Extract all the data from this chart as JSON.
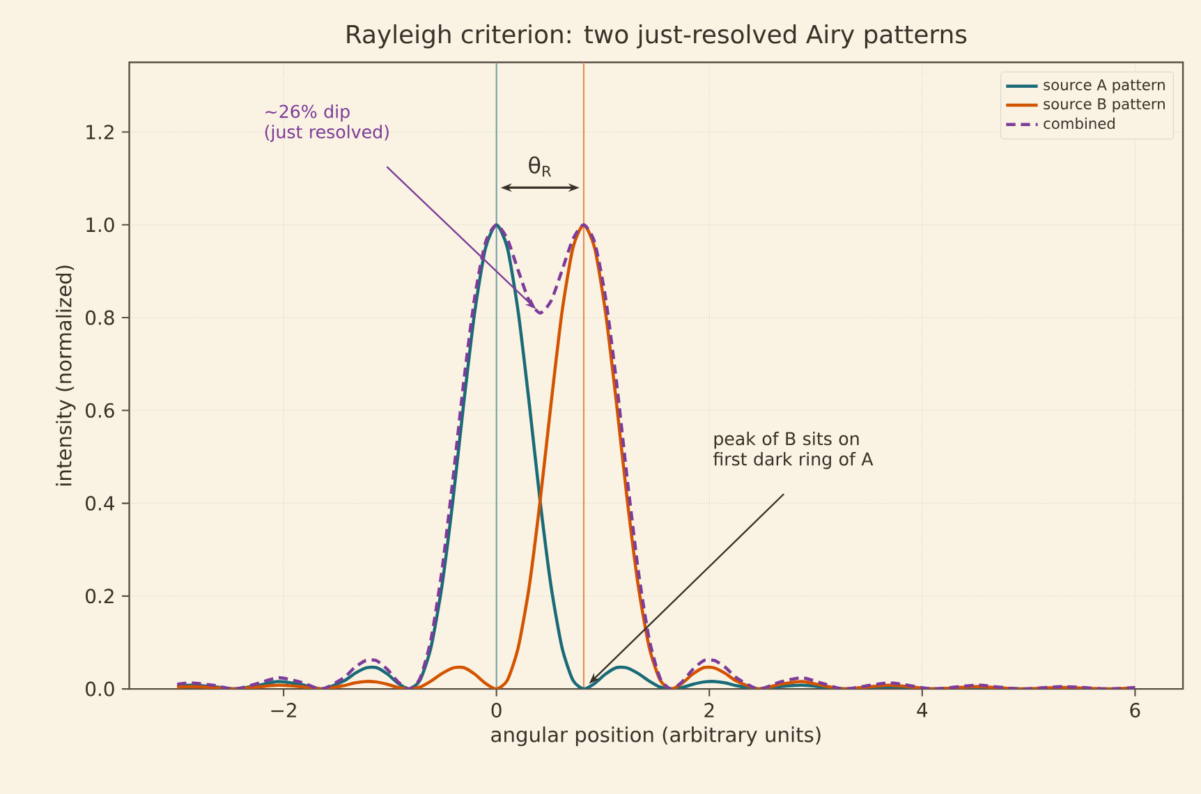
{
  "chart_data": {
    "type": "line",
    "title": "Rayleigh criterion: two just-resolved Airy patterns",
    "xlabel": "angular position (arbitrary units)",
    "ylabel": "intensity (normalized)",
    "x": [
      -3.0,
      -2.87,
      -2.665,
      -2.46,
      -2.255,
      -2.05,
      -1.845,
      -1.64,
      -1.435,
      -1.333,
      -1.23,
      -1.128,
      -1.025,
      -0.923,
      -0.82,
      -0.718,
      -0.615,
      -0.513,
      -0.41,
      -0.308,
      -0.205,
      -0.103,
      0.0,
      0.103,
      0.205,
      0.308,
      0.41,
      0.513,
      0.615,
      0.718,
      0.82,
      0.923,
      1.025,
      1.128,
      1.23,
      1.333,
      1.435,
      1.538,
      1.64,
      1.743,
      1.845,
      1.948,
      2.05,
      2.153,
      2.255,
      2.46,
      2.665,
      2.87,
      3.075,
      3.28,
      3.69,
      4.1,
      4.51,
      4.92,
      5.33,
      5.74,
      6.0
    ],
    "series": [
      {
        "name": "source A pattern",
        "color": "#1a6b78",
        "values": [
          0.006,
          0.008,
          0.005,
          0.0,
          0.007,
          0.016,
          0.01,
          0.0,
          0.017,
          0.033,
          0.045,
          0.046,
          0.032,
          0.012,
          0.0,
          0.019,
          0.09,
          0.221,
          0.405,
          0.615,
          0.811,
          0.95,
          1.0,
          0.95,
          0.811,
          0.615,
          0.405,
          0.221,
          0.09,
          0.019,
          0.0,
          0.012,
          0.032,
          0.046,
          0.045,
          0.033,
          0.017,
          0.004,
          0.0,
          0.003,
          0.01,
          0.015,
          0.016,
          0.013,
          0.007,
          0.0,
          0.005,
          0.008,
          0.004,
          0.0,
          0.005,
          0.0,
          0.003,
          0.0,
          null,
          null,
          null
        ]
      },
      {
        "name": "source B pattern",
        "color": "#d35400",
        "values": [
          0.004,
          0.005,
          0.003,
          0.0,
          0.004,
          0.008,
          0.005,
          0.0,
          0.007,
          0.013,
          0.016,
          0.015,
          0.01,
          0.003,
          0.0,
          0.004,
          0.017,
          0.033,
          0.045,
          0.046,
          0.032,
          0.012,
          0.0,
          0.019,
          0.09,
          0.221,
          0.405,
          0.615,
          0.811,
          0.95,
          1.0,
          0.95,
          0.811,
          0.615,
          0.405,
          0.221,
          0.09,
          0.019,
          0.0,
          0.012,
          0.032,
          0.046,
          0.045,
          0.033,
          0.017,
          0.0,
          0.01,
          0.016,
          0.007,
          0.0,
          0.008,
          0.0,
          0.005,
          0.0,
          0.003,
          0.0,
          0.002
        ]
      },
      {
        "name": "combined",
        "color": "#7d3c98",
        "line_style": "dashed",
        "values": [
          0.01,
          0.013,
          0.008,
          0.0,
          0.011,
          0.024,
          0.015,
          0.0,
          0.024,
          0.046,
          0.061,
          0.061,
          0.042,
          0.015,
          0.0,
          0.023,
          0.107,
          0.254,
          0.45,
          0.661,
          0.843,
          0.962,
          1.0,
          0.969,
          0.901,
          0.836,
          0.81,
          0.836,
          0.901,
          0.969,
          1.0,
          0.962,
          0.843,
          0.661,
          0.45,
          0.254,
          0.107,
          0.023,
          0.0,
          0.015,
          0.042,
          0.061,
          0.061,
          0.046,
          0.024,
          0.0,
          0.015,
          0.024,
          0.011,
          0.0,
          0.013,
          0.0,
          0.008,
          0.0,
          0.005,
          0.0,
          0.003
        ]
      }
    ],
    "xlim": [
      -3.45,
      6.45
    ],
    "ylim": [
      0,
      1.35
    ],
    "xticks": [
      {
        "value": -2,
        "label": "−2"
      },
      0,
      2,
      4,
      6
    ],
    "yticks": [
      {
        "value": 0,
        "label": "0.0"
      },
      0.2,
      0.4,
      0.6,
      0.8,
      {
        "value": 1,
        "label": "1.0"
      },
      1.2
    ],
    "grid": true,
    "legend": "top right",
    "ref_lines": [
      {
        "axis": "x",
        "value": 0,
        "color": "#689b9d"
      },
      {
        "axis": "x",
        "value": 0.82,
        "color": "#e18c50"
      }
    ],
    "annotations": [
      "~26% dip (just resolved)",
      "θ$_{R}$",
      "peak of B sits on first dark ring of A"
    ]
  }
}
